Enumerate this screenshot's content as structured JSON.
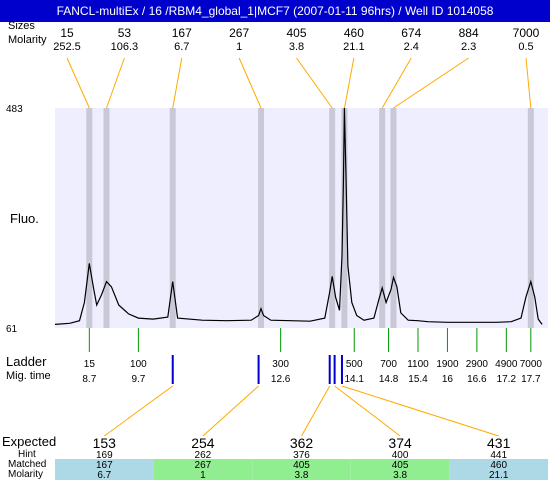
{
  "title": "FANCL-multiEx / 16 /RBM4_global_1|MCF7 (2007-01-11 96hrs) / Well ID 1014058",
  "labels": {
    "sizes": "Sizes",
    "molarity": "Molarity",
    "fluo": "Fluo.",
    "ladder": "Ladder",
    "mig_time": "Mig. time",
    "expected": "Expected",
    "hint": "Hint",
    "matched": "Matched",
    "molarity_bottom": "Molarity"
  },
  "colors": {
    "title_bg": "#0000cc",
    "plot_bg": "#eeeeff",
    "band": "#c8c8d6",
    "trace": "#000000",
    "ladder_tick": "#009900",
    "peak_tick": "#0000cc",
    "connector": "#ffaa00",
    "expected_red": "#ff0000",
    "matched_green": "#90ee90",
    "matched_blue": "#add8e6"
  },
  "chart_data": {
    "type": "line",
    "y_axis": {
      "min": 61,
      "max": 483,
      "tick_labels": [
        "483",
        "61"
      ]
    },
    "peaks": [
      {
        "size": "15",
        "molarity": "252.5",
        "mig": 8.7
      },
      {
        "size": "53",
        "molarity": "106.3",
        "mig": 9.05
      },
      {
        "size": "167",
        "molarity": "6.7",
        "mig": 10.4
      },
      {
        "size": "267",
        "molarity": "1",
        "mig": 12.2
      },
      {
        "size": "405",
        "molarity": "3.8",
        "mig": 13.65
      },
      {
        "size": "460",
        "molarity": "21.1",
        "mig": 13.9
      },
      {
        "size": "674",
        "molarity": "2.4",
        "mig": 14.67
      },
      {
        "size": "884",
        "molarity": "2.3",
        "mig": 14.9
      },
      {
        "size": "7000",
        "molarity": "0.5",
        "mig": 17.7
      }
    ],
    "ladder": [
      {
        "size": "15",
        "mig": "8.7"
      },
      {
        "size": "100",
        "mig": "9.7"
      },
      {
        "size": "300",
        "mig": "12.6"
      },
      {
        "size": "500",
        "mig": "14.1"
      },
      {
        "size": "700",
        "mig": "14.8"
      },
      {
        "size": "1100",
        "mig": "15.4"
      },
      {
        "size": "1900",
        "mig": "16"
      },
      {
        "size": "2900",
        "mig": "16.6"
      },
      {
        "size": "4900",
        "mig": "17.2"
      },
      {
        "size": "7000",
        "mig": "17.7"
      }
    ],
    "trace": [
      [
        8.0,
        68
      ],
      [
        8.3,
        70
      ],
      [
        8.5,
        75
      ],
      [
        8.6,
        110
      ],
      [
        8.7,
        185
      ],
      [
        8.78,
        140
      ],
      [
        8.85,
        105
      ],
      [
        8.95,
        125
      ],
      [
        9.05,
        150
      ],
      [
        9.15,
        140
      ],
      [
        9.3,
        105
      ],
      [
        9.5,
        88
      ],
      [
        9.7,
        80
      ],
      [
        10.0,
        78
      ],
      [
        10.3,
        82
      ],
      [
        10.4,
        150
      ],
      [
        10.5,
        80
      ],
      [
        11.0,
        76
      ],
      [
        11.5,
        75
      ],
      [
        12.0,
        76
      ],
      [
        12.15,
        85
      ],
      [
        12.2,
        98
      ],
      [
        12.25,
        85
      ],
      [
        12.4,
        76
      ],
      [
        12.8,
        75
      ],
      [
        13.2,
        74
      ],
      [
        13.5,
        80
      ],
      [
        13.6,
        130
      ],
      [
        13.65,
        160
      ],
      [
        13.72,
        120
      ],
      [
        13.8,
        95
      ],
      [
        13.85,
        200
      ],
      [
        13.88,
        340
      ],
      [
        13.9,
        483
      ],
      [
        13.93,
        360
      ],
      [
        13.97,
        180
      ],
      [
        14.05,
        110
      ],
      [
        14.15,
        85
      ],
      [
        14.3,
        76
      ],
      [
        14.5,
        80
      ],
      [
        14.6,
        115
      ],
      [
        14.67,
        138
      ],
      [
        14.75,
        110
      ],
      [
        14.85,
        135
      ],
      [
        14.9,
        158
      ],
      [
        14.97,
        140
      ],
      [
        15.05,
        90
      ],
      [
        15.2,
        76
      ],
      [
        15.4,
        75
      ],
      [
        15.6,
        73
      ],
      [
        16.0,
        72
      ],
      [
        16.5,
        72
      ],
      [
        17.0,
        72
      ],
      [
        17.3,
        73
      ],
      [
        17.5,
        80
      ],
      [
        17.6,
        120
      ],
      [
        17.7,
        150
      ],
      [
        17.78,
        120
      ],
      [
        17.85,
        78
      ],
      [
        17.93,
        68
      ]
    ],
    "peak_marks": [
      10.4,
      12.15,
      13.6,
      13.7,
      13.85
    ],
    "expected": [
      {
        "expected": "153",
        "hint": "169",
        "matched": "167",
        "molarity": "6.7",
        "red": true,
        "row_color": "blue"
      },
      {
        "expected": "254",
        "hint": "262",
        "matched": "267",
        "molarity": "1",
        "red": false,
        "row_color": "green"
      },
      {
        "expected": "362",
        "hint": "376",
        "matched": "405",
        "molarity": "3.8",
        "red": false,
        "row_color": "green"
      },
      {
        "expected": "374",
        "hint": "400",
        "matched": "405",
        "molarity": "3.8",
        "red": false,
        "row_color": "green"
      },
      {
        "expected": "431",
        "hint": "441",
        "matched": "460",
        "molarity": "21.1",
        "red": true,
        "row_color": "blue"
      }
    ]
  }
}
